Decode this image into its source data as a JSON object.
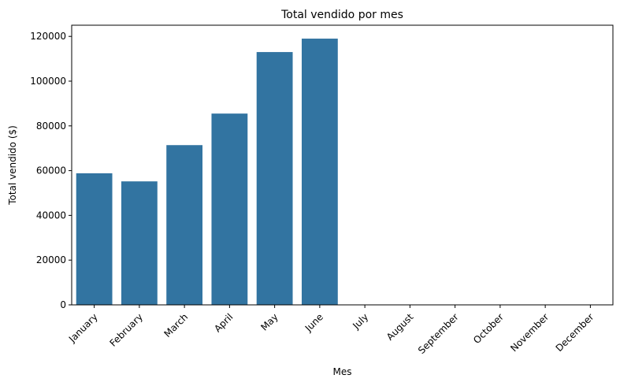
{
  "chart_data": {
    "type": "bar",
    "title": "Total vendido por mes",
    "xlabel": "Mes",
    "ylabel": "Total vendido ($)",
    "categories": [
      "January",
      "February",
      "March",
      "April",
      "May",
      "June",
      "July",
      "August",
      "September",
      "October",
      "November",
      "December"
    ],
    "values": [
      58800,
      55200,
      71400,
      85500,
      113000,
      119000,
      0,
      0,
      0,
      0,
      0,
      0
    ],
    "ylim": [
      0,
      125000
    ],
    "yticks": [
      0,
      20000,
      40000,
      60000,
      80000,
      100000,
      120000
    ],
    "ytick_labels": [
      "0",
      "20000",
      "40000",
      "60000",
      "80000",
      "100000",
      "120000"
    ],
    "grid": false,
    "bar_color": "#3274a1"
  }
}
